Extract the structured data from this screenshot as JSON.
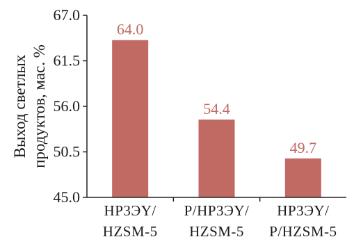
{
  "chart_data": {
    "type": "bar",
    "categories": [
      [
        "HP3ЭY/",
        "HZSM-5"
      ],
      [
        "P/HP3ЭY/",
        "HZSM-5"
      ],
      [
        "HP3ЭY/",
        "P/HZSM-5"
      ]
    ],
    "values": [
      64.0,
      54.4,
      49.7
    ],
    "value_labels": [
      "64.0",
      "54.4",
      "49.7"
    ],
    "ylabel_lines": [
      "Выход светлых",
      "продуктов, мас. %"
    ],
    "ylim": [
      45.0,
      67.0
    ],
    "yticks": [
      45.0,
      50.5,
      56.0,
      61.5,
      67.0
    ],
    "ytick_labels": [
      "45.0",
      "50.5",
      "56.0",
      "61.5",
      "67.0"
    ],
    "grid": false,
    "bar_color": "#c06a63",
    "label_color": "#c06a63"
  }
}
